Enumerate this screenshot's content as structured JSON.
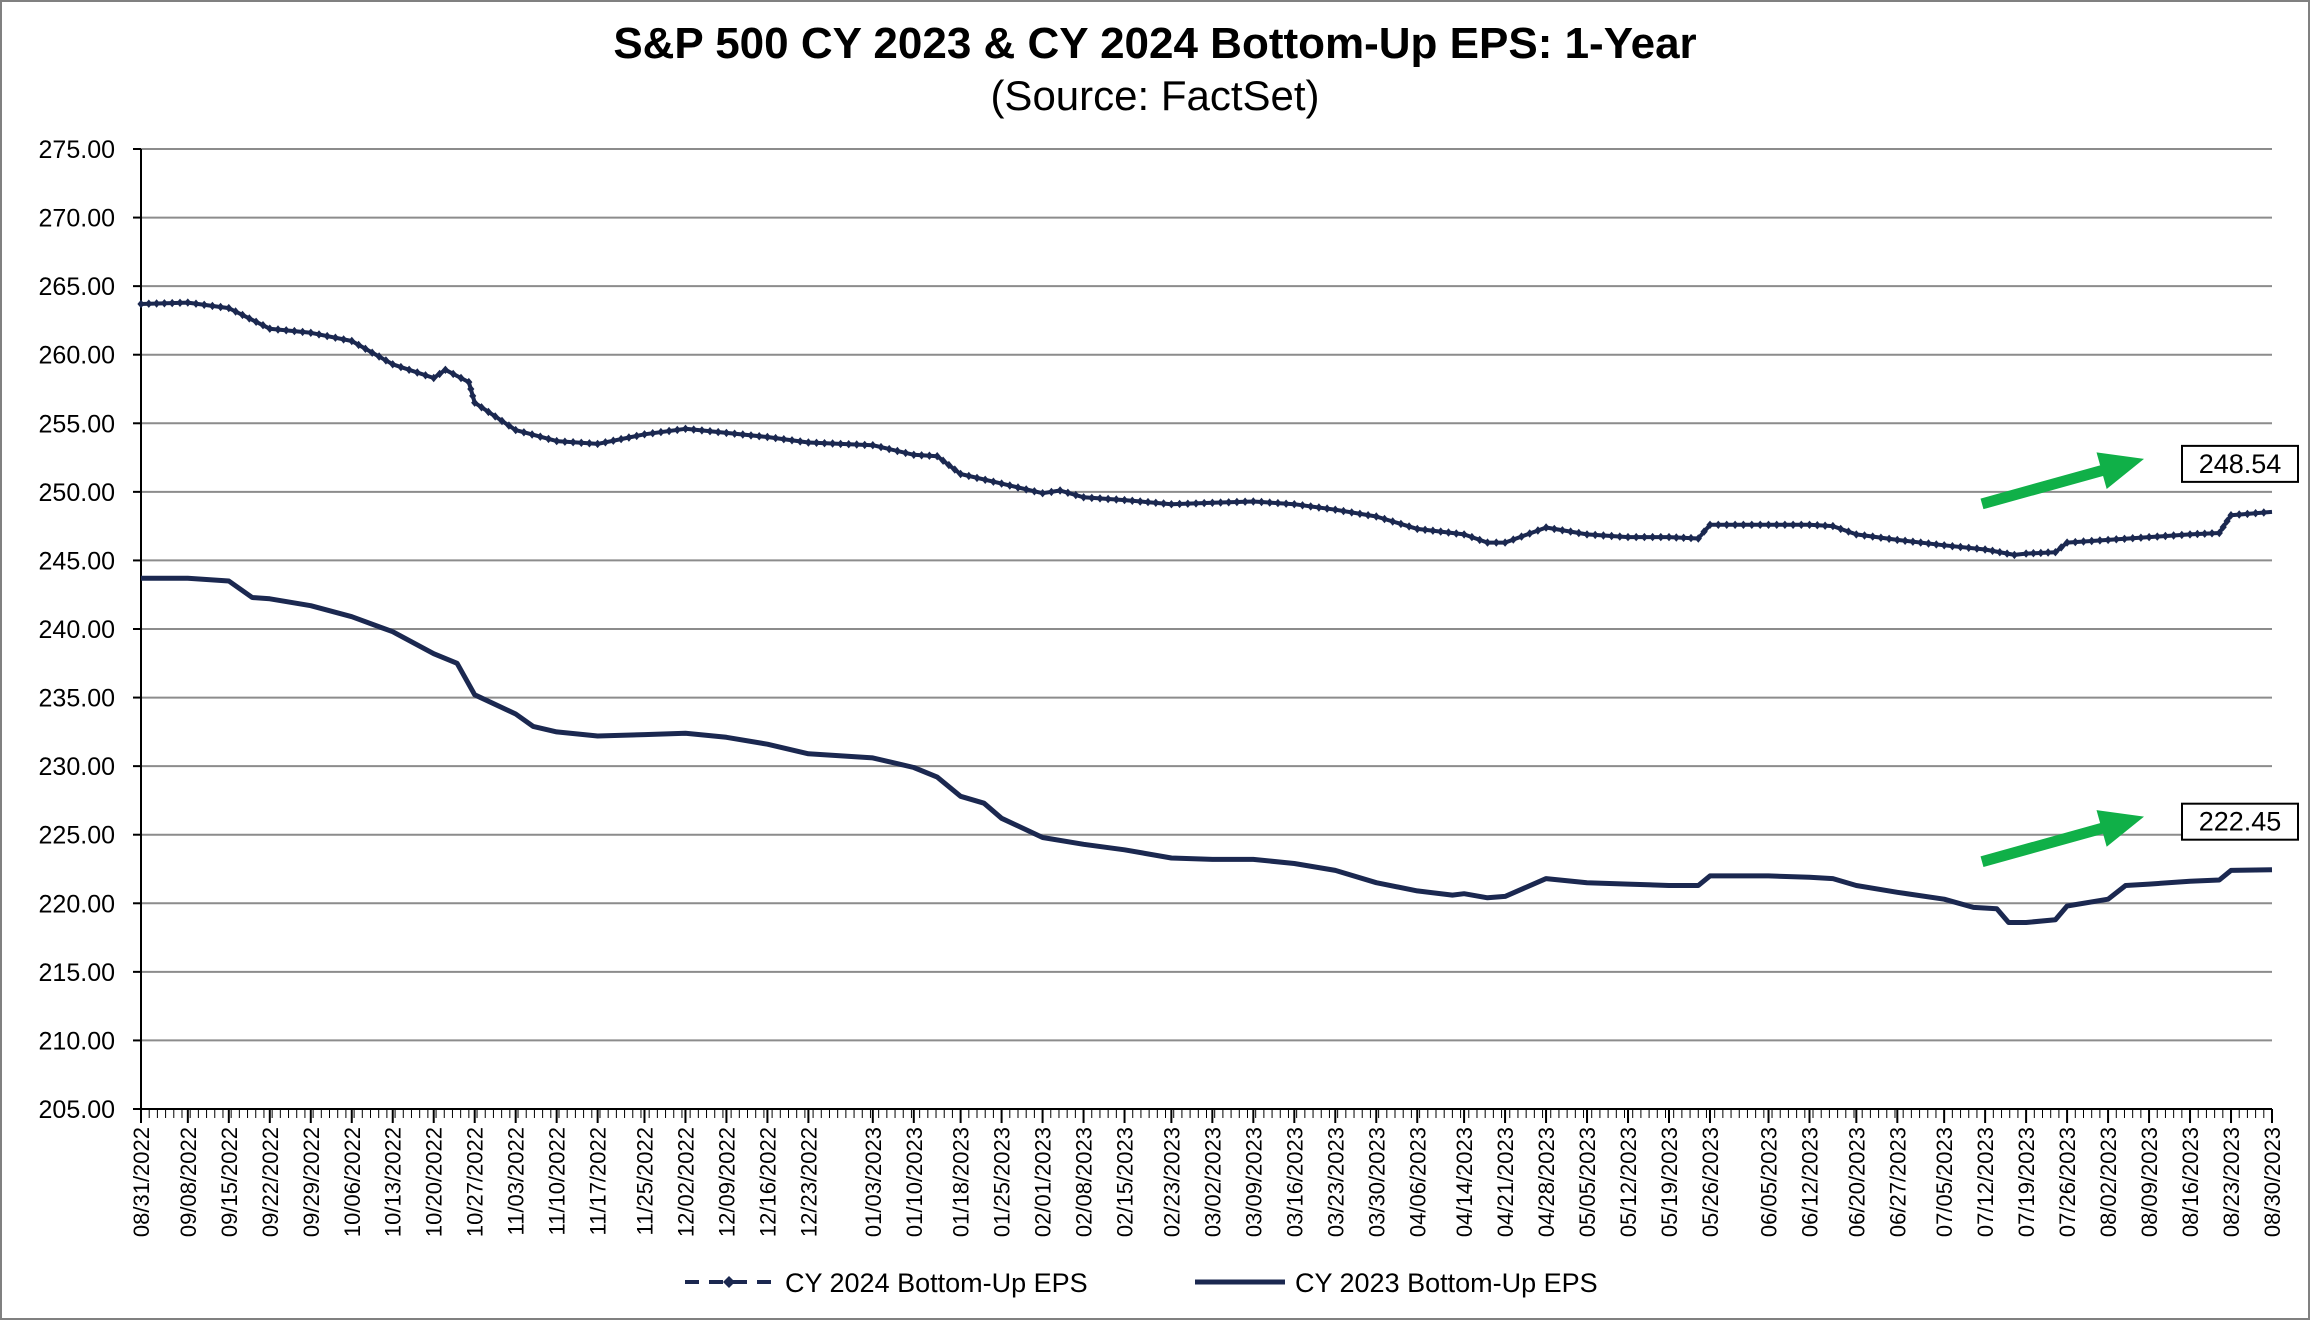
{
  "chart_data": {
    "type": "line",
    "title": "S&P 500 CY 2023 & CY 2024 Bottom-Up  EPS: 1-Year",
    "subtitle": "(Source: FactSet)",
    "ylim": [
      205,
      275
    ],
    "yticks": [
      "275.00",
      "270.00",
      "265.00",
      "260.00",
      "255.00",
      "250.00",
      "245.00",
      "240.00",
      "235.00",
      "230.00",
      "225.00",
      "220.00",
      "215.00",
      "210.00",
      "205.00"
    ],
    "ytick_values": [
      275,
      270,
      265,
      260,
      255,
      250,
      245,
      240,
      235,
      230,
      225,
      220,
      215,
      210,
      205
    ],
    "x_dates": [
      "08/31/2022",
      "09/08/2022",
      "09/15/2022",
      "09/22/2022",
      "09/29/2022",
      "10/06/2022",
      "10/13/2022",
      "10/20/2022",
      "10/27/2022",
      "11/03/2022",
      "11/10/2022",
      "11/17/2022",
      "11/25/2022",
      "12/02/2022",
      "12/09/2022",
      "12/16/2022",
      "12/23/2022",
      "01/03/2023",
      "01/10/2023",
      "01/18/2023",
      "01/25/2023",
      "02/01/2023",
      "02/08/2023",
      "02/15/2023",
      "02/23/2023",
      "03/02/2023",
      "03/09/2023",
      "03/16/2023",
      "03/23/2023",
      "03/30/2023",
      "04/06/2023",
      "04/14/2023",
      "04/21/2023",
      "04/28/2023",
      "05/05/2023",
      "05/12/2023",
      "05/19/2023",
      "05/26/2023",
      "06/05/2023",
      "06/12/2023",
      "06/20/2023",
      "06/27/2023",
      "07/05/2023",
      "07/12/2023",
      "07/19/2023",
      "07/26/2023",
      "08/02/2023",
      "08/09/2023",
      "08/16/2023",
      "08/23/2023",
      "08/30/2023"
    ],
    "series": [
      {
        "name": "CY 2024 Bottom-Up EPS",
        "color": "#1b2850",
        "style": "dashed-markers",
        "points": [
          [
            "08/31/2022",
            263.7
          ],
          [
            "09/08/2022",
            263.8
          ],
          [
            "09/15/2022",
            263.4
          ],
          [
            "09/22/2022",
            261.9
          ],
          [
            "09/29/2022",
            261.6
          ],
          [
            "10/06/2022",
            261.0
          ],
          [
            "10/13/2022",
            259.3
          ],
          [
            "10/20/2022",
            258.3
          ],
          [
            "10/22/2022",
            258.9
          ],
          [
            "10/26/2022",
            258.0
          ],
          [
            "10/27/2022",
            256.5
          ],
          [
            "11/03/2022",
            254.5
          ],
          [
            "11/10/2022",
            253.7
          ],
          [
            "11/17/2022",
            253.5
          ],
          [
            "11/25/2022",
            254.2
          ],
          [
            "12/02/2022",
            254.6
          ],
          [
            "12/09/2022",
            254.3
          ],
          [
            "12/16/2022",
            254.0
          ],
          [
            "12/23/2022",
            253.6
          ],
          [
            "01/03/2023",
            253.4
          ],
          [
            "01/10/2023",
            252.7
          ],
          [
            "01/14/2023",
            252.6
          ],
          [
            "01/18/2023",
            251.3
          ],
          [
            "01/25/2023",
            250.6
          ],
          [
            "02/01/2023",
            249.9
          ],
          [
            "02/04/2023",
            250.1
          ],
          [
            "02/08/2023",
            249.6
          ],
          [
            "02/15/2023",
            249.4
          ],
          [
            "02/23/2023",
            249.1
          ],
          [
            "03/02/2023",
            249.2
          ],
          [
            "03/09/2023",
            249.3
          ],
          [
            "03/16/2023",
            249.1
          ],
          [
            "03/23/2023",
            248.7
          ],
          [
            "03/30/2023",
            248.2
          ],
          [
            "04/06/2023",
            247.3
          ],
          [
            "04/14/2023",
            246.9
          ],
          [
            "04/18/2023",
            246.3
          ],
          [
            "04/21/2023",
            246.3
          ],
          [
            "04/28/2023",
            247.4
          ],
          [
            "05/05/2023",
            246.9
          ],
          [
            "05/12/2023",
            246.7
          ],
          [
            "05/19/2023",
            246.7
          ],
          [
            "05/24/2023",
            246.6
          ],
          [
            "05/26/2023",
            247.6
          ],
          [
            "06/05/2023",
            247.6
          ],
          [
            "06/12/2023",
            247.6
          ],
          [
            "06/16/2023",
            247.5
          ],
          [
            "06/20/2023",
            246.9
          ],
          [
            "06/27/2023",
            246.5
          ],
          [
            "07/05/2023",
            246.1
          ],
          [
            "07/12/2023",
            245.8
          ],
          [
            "07/17/2023",
            245.4
          ],
          [
            "07/19/2023",
            245.5
          ],
          [
            "07/24/2023",
            245.6
          ],
          [
            "07/26/2023",
            246.3
          ],
          [
            "08/02/2023",
            246.5
          ],
          [
            "08/09/2023",
            246.7
          ],
          [
            "08/16/2023",
            246.9
          ],
          [
            "08/21/2023",
            247.0
          ],
          [
            "08/23/2023",
            248.3
          ],
          [
            "08/30/2023",
            248.54
          ]
        ]
      },
      {
        "name": "CY 2023 Bottom-Up EPS",
        "color": "#1b2850",
        "style": "solid",
        "points": [
          [
            "08/31/2022",
            243.7
          ],
          [
            "09/08/2022",
            243.7
          ],
          [
            "09/15/2022",
            243.5
          ],
          [
            "09/19/2022",
            242.3
          ],
          [
            "09/22/2022",
            242.2
          ],
          [
            "09/29/2022",
            241.7
          ],
          [
            "10/06/2022",
            240.9
          ],
          [
            "10/13/2022",
            239.8
          ],
          [
            "10/20/2022",
            238.2
          ],
          [
            "10/24/2022",
            237.5
          ],
          [
            "10/27/2022",
            235.2
          ],
          [
            "11/03/2022",
            233.8
          ],
          [
            "11/06/2022",
            232.9
          ],
          [
            "11/10/2022",
            232.5
          ],
          [
            "11/17/2022",
            232.2
          ],
          [
            "11/25/2022",
            232.3
          ],
          [
            "12/02/2022",
            232.4
          ],
          [
            "12/09/2022",
            232.1
          ],
          [
            "12/16/2022",
            231.6
          ],
          [
            "12/23/2022",
            230.9
          ],
          [
            "01/03/2023",
            230.6
          ],
          [
            "01/10/2023",
            229.9
          ],
          [
            "01/14/2023",
            229.2
          ],
          [
            "01/18/2023",
            227.8
          ],
          [
            "01/22/2023",
            227.3
          ],
          [
            "01/25/2023",
            226.2
          ],
          [
            "02/01/2023",
            224.8
          ],
          [
            "02/08/2023",
            224.3
          ],
          [
            "02/15/2023",
            223.9
          ],
          [
            "02/23/2023",
            223.3
          ],
          [
            "03/02/2023",
            223.2
          ],
          [
            "03/09/2023",
            223.2
          ],
          [
            "03/16/2023",
            222.9
          ],
          [
            "03/23/2023",
            222.4
          ],
          [
            "03/30/2023",
            221.5
          ],
          [
            "04/06/2023",
            220.9
          ],
          [
            "04/12/2023",
            220.6
          ],
          [
            "04/14/2023",
            220.7
          ],
          [
            "04/18/2023",
            220.4
          ],
          [
            "04/21/2023",
            220.5
          ],
          [
            "04/28/2023",
            221.8
          ],
          [
            "05/05/2023",
            221.5
          ],
          [
            "05/12/2023",
            221.4
          ],
          [
            "05/19/2023",
            221.3
          ],
          [
            "05/24/2023",
            221.3
          ],
          [
            "05/26/2023",
            222.0
          ],
          [
            "06/05/2023",
            222.0
          ],
          [
            "06/12/2023",
            221.9
          ],
          [
            "06/16/2023",
            221.8
          ],
          [
            "06/20/2023",
            221.3
          ],
          [
            "06/27/2023",
            220.8
          ],
          [
            "07/05/2023",
            220.3
          ],
          [
            "07/10/2023",
            219.7
          ],
          [
            "07/14/2023",
            219.6
          ],
          [
            "07/16/2023",
            218.6
          ],
          [
            "07/19/2023",
            218.6
          ],
          [
            "07/24/2023",
            218.8
          ],
          [
            "07/26/2023",
            219.8
          ],
          [
            "08/02/2023",
            220.3
          ],
          [
            "08/05/2023",
            221.3
          ],
          [
            "08/09/2023",
            221.4
          ],
          [
            "08/16/2023",
            221.6
          ],
          [
            "08/21/2023",
            221.7
          ],
          [
            "08/23/2023",
            222.4
          ],
          [
            "08/30/2023",
            222.45
          ]
        ]
      }
    ],
    "annotations": [
      {
        "text": "248.54",
        "series": "CY 2024 Bottom-Up EPS",
        "arrow_color": "#10b048"
      },
      {
        "text": "222.45",
        "series": "CY 2023 Bottom-Up EPS",
        "arrow_color": "#10b048"
      }
    ],
    "legend": [
      {
        "label": "CY 2024 Bottom-Up EPS",
        "style": "dashed-markers"
      },
      {
        "label": "CY 2023 Bottom-Up EPS",
        "style": "solid"
      }
    ],
    "legend_position": "bottom",
    "grid": true
  }
}
